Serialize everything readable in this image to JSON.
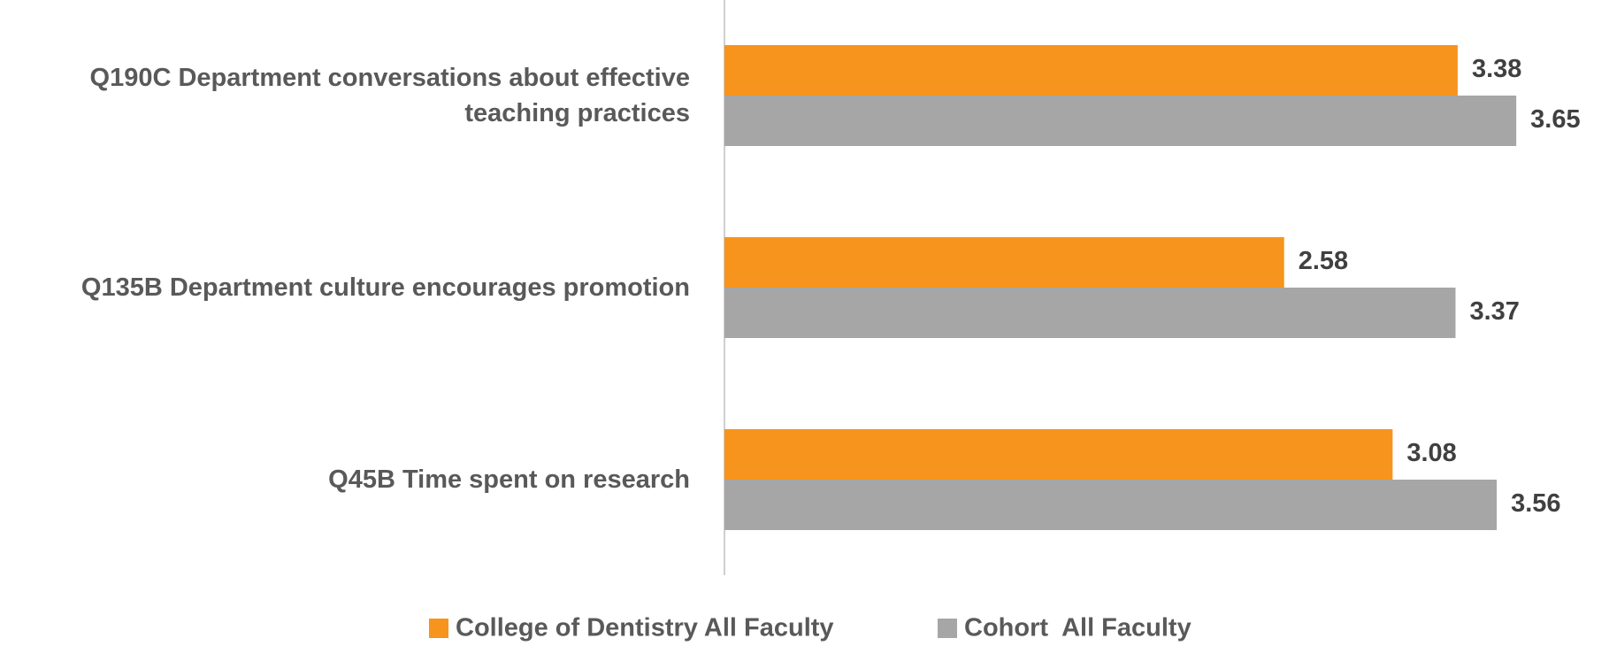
{
  "chart_data": {
    "type": "bar",
    "orientation": "horizontal",
    "categories": [
      "Q190C Department conversations about effective teaching practices",
      "Q135B Department culture encourages promotion",
      "Q45B Time spent on research"
    ],
    "series": [
      {
        "name": "College of Dentistry All Faculty",
        "color": "#F7941D",
        "values": [
          3.38,
          2.58,
          3.08
        ]
      },
      {
        "name": "Cohort  All Faculty",
        "color": "#A6A6A6",
        "values": [
          3.65,
          3.37,
          3.56
        ]
      }
    ],
    "xlim": [
      0,
      4
    ],
    "grid": false,
    "legend": "bottom"
  }
}
